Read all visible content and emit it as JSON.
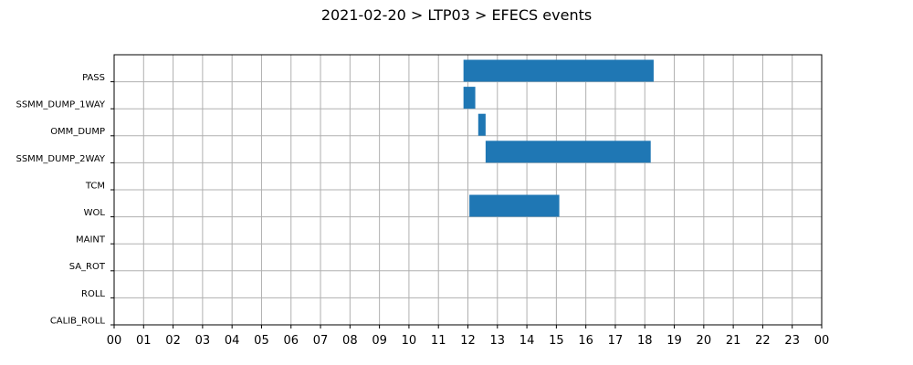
{
  "chart_data": {
    "type": "bar",
    "orientation": "horizontal",
    "title": "2021-02-20 > LTP03 > EFECS events",
    "xlabel": "",
    "ylabel": "",
    "xlim": [
      0,
      24
    ],
    "grid": true,
    "categories": [
      "PASS",
      "SSMM_DUMP_1WAY",
      "OMM_DUMP",
      "SSMM_DUMP_2WAY",
      "TCM",
      "WOL",
      "MAINT",
      "SA_ROT",
      "ROLL",
      "CALIB_ROLL"
    ],
    "x_tick_labels": [
      "00",
      "01",
      "02",
      "03",
      "04",
      "05",
      "06",
      "07",
      "08",
      "09",
      "10",
      "11",
      "12",
      "13",
      "14",
      "15",
      "16",
      "17",
      "18",
      "19",
      "20",
      "21",
      "22",
      "23",
      "00"
    ],
    "bar_color": "#1f77b4",
    "events": [
      {
        "category": "PASS",
        "start": 11.85,
        "end": 18.3
      },
      {
        "category": "SSMM_DUMP_1WAY",
        "start": 11.85,
        "end": 12.25
      },
      {
        "category": "OMM_DUMP",
        "start": 12.35,
        "end": 12.6
      },
      {
        "category": "SSMM_DUMP_2WAY",
        "start": 12.6,
        "end": 18.2
      },
      {
        "category": "WOL",
        "start": 12.05,
        "end": 15.1
      }
    ]
  }
}
